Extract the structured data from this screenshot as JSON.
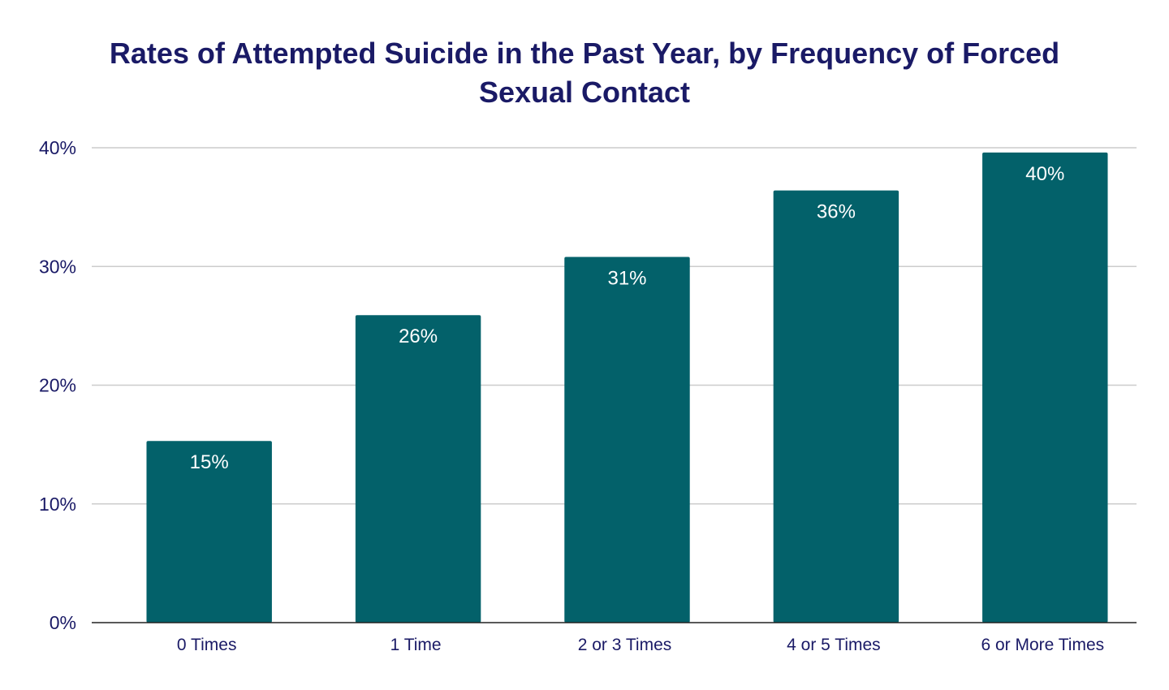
{
  "chart_data": {
    "type": "bar",
    "title_lines": [
      "Rates of Attempted Suicide in the Past Year, by Frequency of Forced",
      "Sexual Contact"
    ],
    "categories": [
      "0 Times",
      "1 Time",
      "2 or 3 Times",
      "4 or 5 Times",
      "6 or More Times"
    ],
    "values": [
      15.3,
      25.9,
      30.8,
      36.4,
      39.6
    ],
    "data_labels": [
      "15%",
      "26%",
      "31%",
      "36%",
      "40%"
    ],
    "xlabel": "",
    "ylabel": "",
    "ylim": [
      0,
      40
    ],
    "yticks": [
      0,
      10,
      20,
      30,
      40
    ],
    "ytick_labels": [
      "0%",
      "10%",
      "20%",
      "30%",
      "40%"
    ],
    "grid": true,
    "legend": "none",
    "colors": {
      "bar": "#03616a",
      "title": "#1a1a66",
      "tick_text": "#1a1a66",
      "data_label": "#ffffff",
      "grid": "#cccccc",
      "axis": "#222222"
    }
  }
}
